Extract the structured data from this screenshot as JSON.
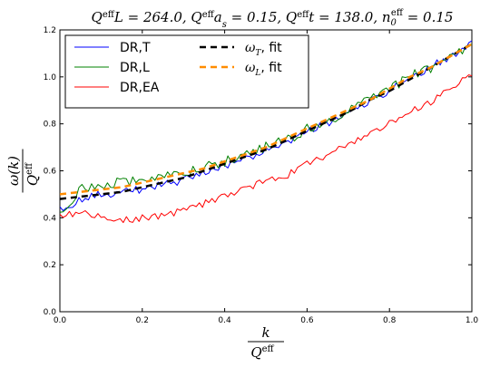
{
  "chart_data": {
    "type": "line",
    "title": "Q^eff L = 264.0, Q^eff a_s = 0.15, Q^eff t = 138.0, n_0^eff = 0.15",
    "title_parts": [
      "Q",
      "eff",
      "L = 264.0, ",
      "Q",
      "eff",
      "a",
      "s",
      " = 0.15, ",
      "Q",
      "eff",
      "t = 138.0, ",
      "n",
      "0",
      "eff",
      " = 0.15"
    ],
    "xlabel": {
      "num": "k",
      "den": "Q",
      "den_sup": "eff"
    },
    "ylabel": {
      "num": "ω(k)",
      "den": "Q",
      "den_sup": "eff"
    },
    "xlim": [
      0.0,
      1.0
    ],
    "ylim": [
      0.0,
      1.2
    ],
    "xticks": [
      "0.0",
      "0.2",
      "0.4",
      "0.6",
      "0.8",
      "1.0"
    ],
    "yticks": [
      "0.0",
      "0.2",
      "0.4",
      "0.6",
      "0.8",
      "1.0",
      "1.2"
    ],
    "grid": false,
    "legend_position": "top-left",
    "series": [
      {
        "name": "DR,T",
        "color": "#0000ff",
        "style": "solid",
        "x": [
          0.0,
          0.05,
          0.1,
          0.15,
          0.2,
          0.25,
          0.3,
          0.35,
          0.4,
          0.45,
          0.5,
          0.55,
          0.6,
          0.65,
          0.7,
          0.75,
          0.8,
          0.85,
          0.9,
          0.95,
          1.0
        ],
        "y": [
          0.43,
          0.48,
          0.5,
          0.51,
          0.52,
          0.54,
          0.56,
          0.59,
          0.62,
          0.65,
          0.69,
          0.72,
          0.77,
          0.8,
          0.85,
          0.89,
          0.94,
          0.99,
          1.04,
          1.09,
          1.15
        ]
      },
      {
        "name": "DR,L",
        "color": "#008000",
        "style": "solid",
        "x": [
          0.0,
          0.05,
          0.1,
          0.15,
          0.2,
          0.25,
          0.3,
          0.35,
          0.4,
          0.45,
          0.5,
          0.55,
          0.6,
          0.65,
          0.7,
          0.75,
          0.8,
          0.85,
          0.9,
          0.95,
          1.0
        ],
        "y": [
          0.43,
          0.52,
          0.54,
          0.55,
          0.57,
          0.58,
          0.59,
          0.62,
          0.64,
          0.67,
          0.7,
          0.73,
          0.78,
          0.81,
          0.86,
          0.9,
          0.95,
          1.0,
          1.04,
          1.09,
          1.13
        ]
      },
      {
        "name": "DR,EA",
        "color": "#ff0000",
        "style": "solid",
        "x": [
          0.0,
          0.05,
          0.1,
          0.15,
          0.2,
          0.25,
          0.3,
          0.35,
          0.4,
          0.45,
          0.5,
          0.55,
          0.6,
          0.65,
          0.7,
          0.75,
          0.8,
          0.85,
          0.9,
          0.95,
          1.0
        ],
        "y": [
          0.41,
          0.42,
          0.4,
          0.39,
          0.4,
          0.41,
          0.43,
          0.46,
          0.49,
          0.52,
          0.56,
          0.58,
          0.63,
          0.67,
          0.71,
          0.76,
          0.8,
          0.85,
          0.89,
          0.95,
          1.01
        ]
      },
      {
        "name": "ω_T, fit",
        "color": "#000000",
        "style": "dashed",
        "x": [
          0.0,
          0.05,
          0.1,
          0.15,
          0.2,
          0.25,
          0.3,
          0.35,
          0.4,
          0.45,
          0.5,
          0.55,
          0.6,
          0.65,
          0.7,
          0.75,
          0.8,
          0.85,
          0.9,
          0.95,
          1.0
        ],
        "y": [
          0.48,
          0.49,
          0.5,
          0.51,
          0.53,
          0.55,
          0.57,
          0.6,
          0.63,
          0.66,
          0.69,
          0.73,
          0.77,
          0.81,
          0.85,
          0.9,
          0.94,
          0.99,
          1.04,
          1.09,
          1.14
        ]
      },
      {
        "name": "ω_L, fit",
        "color": "#ff8c00",
        "style": "dashed",
        "x": [
          0.0,
          0.05,
          0.1,
          0.15,
          0.2,
          0.25,
          0.3,
          0.35,
          0.4,
          0.45,
          0.5,
          0.55,
          0.6,
          0.65,
          0.7,
          0.75,
          0.8,
          0.85,
          0.9,
          0.95,
          1.0
        ],
        "y": [
          0.5,
          0.51,
          0.52,
          0.53,
          0.55,
          0.57,
          0.59,
          0.61,
          0.64,
          0.67,
          0.7,
          0.74,
          0.78,
          0.82,
          0.86,
          0.9,
          0.95,
          1.0,
          1.04,
          1.09,
          1.14
        ]
      }
    ],
    "legend": [
      {
        "label": "DR,T",
        "series": 0
      },
      {
        "label": "DR,L",
        "series": 1
      },
      {
        "label": "DR,EA",
        "series": 2
      },
      {
        "label_main": "ω",
        "label_sub": "T",
        "label_rest": ", fit",
        "series": 3
      },
      {
        "label_main": "ω",
        "label_sub": "L",
        "label_rest": ", fit",
        "series": 4
      }
    ]
  }
}
